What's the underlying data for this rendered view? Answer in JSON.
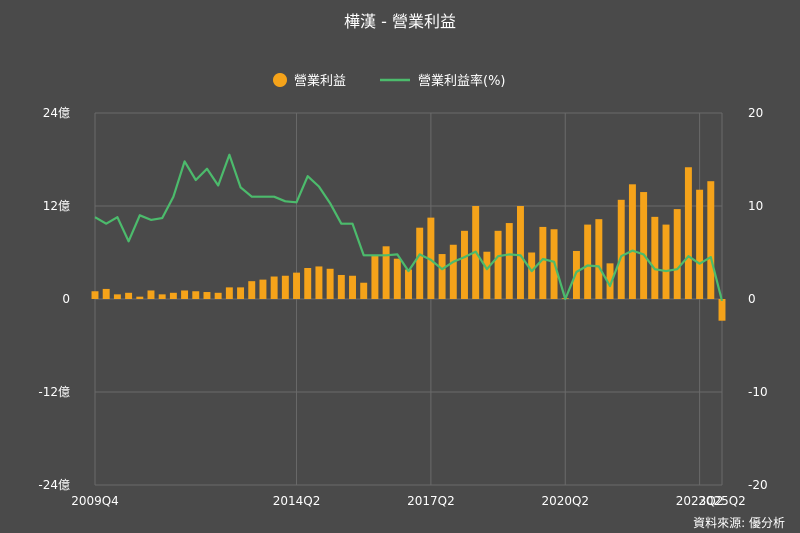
{
  "chart_data": {
    "type": "bar",
    "title": "樺漢 - 營業利益",
    "legend": {
      "placement": "top-center"
    },
    "series": [
      {
        "name": "營業利益",
        "type": "bar",
        "axis": "left",
        "color": "#f5a31a",
        "values": [
          1.0,
          1.3,
          0.6,
          0.8,
          0.3,
          1.1,
          0.6,
          0.8,
          1.1,
          1.0,
          0.9,
          0.8,
          1.5,
          1.5,
          2.3,
          2.5,
          2.9,
          3.0,
          3.4,
          4.0,
          4.2,
          3.9,
          3.1,
          3.0,
          2.1,
          5.7,
          6.8,
          5.2,
          3.8,
          9.2,
          10.5,
          5.8,
          7.0,
          8.8,
          12.0,
          6.1,
          8.8,
          9.8,
          12.0,
          6.0,
          9.3,
          9.0,
          0.1,
          6.2,
          9.6,
          10.3,
          4.6,
          12.8,
          14.8,
          13.8,
          10.6,
          9.6,
          11.6,
          17.0,
          14.1,
          15.2,
          -2.8
        ]
      },
      {
        "name": "營業利益率(%)",
        "type": "line",
        "axis": "right",
        "color": "#4cbb6c",
        "values": [
          8.8,
          8.1,
          8.8,
          6.2,
          9.0,
          8.5,
          8.7,
          11.0,
          14.8,
          12.8,
          14.0,
          12.2,
          15.5,
          12.0,
          11.0,
          11.0,
          11.0,
          10.5,
          10.4,
          13.2,
          12.1,
          10.3,
          8.1,
          8.1,
          4.7,
          4.7,
          4.7,
          4.8,
          3.0,
          4.8,
          4.2,
          3.2,
          4.0,
          4.5,
          5.1,
          3.2,
          4.6,
          4.8,
          4.7,
          3.0,
          4.3,
          4.0,
          0.0,
          2.9,
          3.6,
          3.5,
          1.4,
          4.6,
          5.2,
          4.8,
          3.2,
          3.0,
          3.2,
          4.6,
          3.8,
          4.5,
          -0.2
        ]
      }
    ],
    "x_ticks": [
      "2009Q4",
      "2014Q2",
      "2017Q2",
      "2020Q2",
      "2023Q2",
      "2025Q2"
    ],
    "y_left": {
      "ticks": [
        "24億",
        "12億",
        "0",
        "-12億",
        "-24億"
      ],
      "min": -24,
      "max": 24
    },
    "y_right": {
      "ticks": [
        "20",
        "10",
        "0",
        "-10",
        "-20"
      ],
      "min": -20,
      "max": 20
    },
    "grid": true,
    "source": "資料來源: 優分析"
  }
}
